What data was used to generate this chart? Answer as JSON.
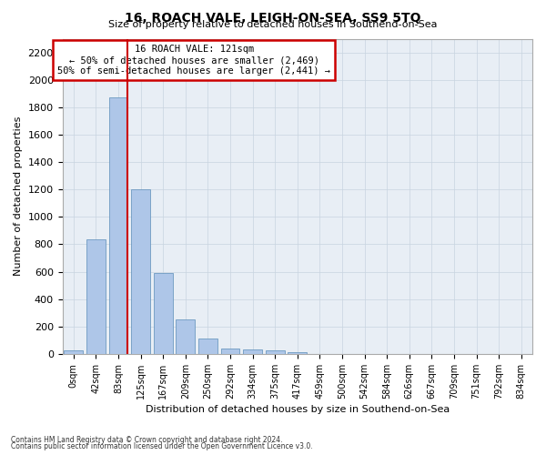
{
  "title1": "16, ROACH VALE, LEIGH-ON-SEA, SS9 5TQ",
  "title2": "Size of property relative to detached houses in Southend-on-Sea",
  "xlabel": "Distribution of detached houses by size in Southend-on-Sea",
  "ylabel": "Number of detached properties",
  "footnote1": "Contains HM Land Registry data © Crown copyright and database right 2024.",
  "footnote2": "Contains public sector information licensed under the Open Government Licence v3.0.",
  "annotation_title": "16 ROACH VALE: 121sqm",
  "annotation_line1": "← 50% of detached houses are smaller (2,469)",
  "annotation_line2": "50% of semi-detached houses are larger (2,441) →",
  "bar_color": "#aec6e8",
  "bar_edge_color": "#5b8db8",
  "grid_color": "#c8d4e0",
  "background_color": "#e8eef5",
  "annotation_box_color": "#ffffff",
  "annotation_box_edge": "#cc0000",
  "vline_color": "#cc0000",
  "categories": [
    "0sqm",
    "42sqm",
    "83sqm",
    "125sqm",
    "167sqm",
    "209sqm",
    "250sqm",
    "292sqm",
    "334sqm",
    "375sqm",
    "417sqm",
    "459sqm",
    "500sqm",
    "542sqm",
    "584sqm",
    "626sqm",
    "667sqm",
    "709sqm",
    "751sqm",
    "792sqm",
    "834sqm"
  ],
  "values": [
    25,
    835,
    1870,
    1200,
    590,
    255,
    115,
    40,
    35,
    25,
    15,
    0,
    0,
    0,
    0,
    0,
    0,
    0,
    0,
    0,
    0
  ],
  "vline_x_index": 2,
  "ylim": [
    0,
    2300
  ],
  "yticks": [
    0,
    200,
    400,
    600,
    800,
    1000,
    1200,
    1400,
    1600,
    1800,
    2000,
    2200
  ]
}
